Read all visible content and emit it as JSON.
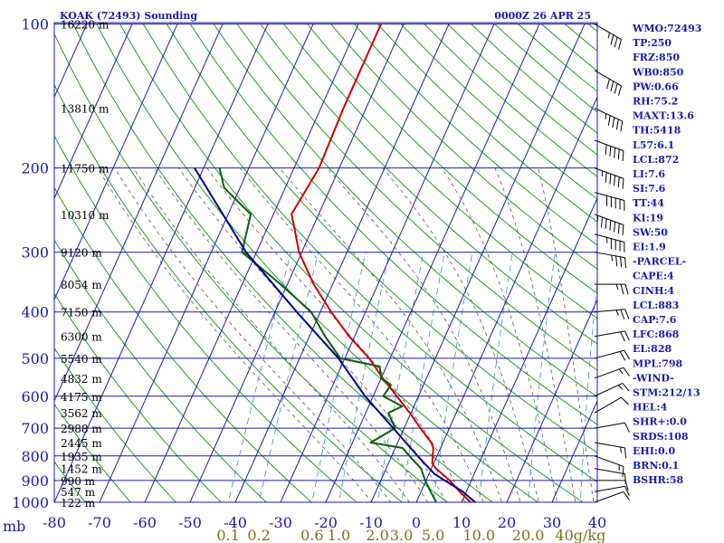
{
  "header": {
    "station": "KOAK (72493) Sounding",
    "time": "0000Z 26 APR 25"
  },
  "side_panel": [
    "WMO:72493",
    "TP:250",
    "FRZ:850",
    "WB0:850",
    "PW:0.66",
    "RH:75.2",
    "MAXT:13.6",
    "TH:5418",
    "L57:6.1",
    "LCL:872",
    "LI:7.6",
    "SI:7.6",
    "TT:44",
    "KI:19",
    "SW:50",
    "EI:1.9",
    "-PARCEL-",
    "CAPE:4",
    "CINH:4",
    "LCL:883",
    "CAP:7.6",
    "LFC:868",
    "EL:828",
    "MPL:798",
    "-WIND-",
    "STM:212/13",
    "HEL:4",
    "SHR+:0.0",
    "SRDS:108",
    "EHI:0.0",
    "BRN:0.1",
    "BSHR:58"
  ],
  "chart_data": {
    "type": "line",
    "title": "KOAK (72493) Sounding",
    "subtitle": "0000Z 26 APR 25",
    "xlabel": "",
    "ylabel": "mb",
    "x_scale": "skew-T temperature (°C)",
    "y_scale": "log pressure (mb)",
    "xlim": [
      -80,
      40
    ],
    "ylim": [
      1000,
      100
    ],
    "y_tick_unit": "mb",
    "x_ticks": [
      "-80",
      "-70",
      "-60",
      "-50",
      "-40",
      "-30",
      "-20",
      "-10",
      "0",
      "10",
      "20",
      "30",
      "40"
    ],
    "pressure_ticks": [
      "100",
      "200",
      "300",
      "400",
      "500",
      "600",
      "700",
      "800",
      "900",
      "1000"
    ],
    "height_labels": [
      {
        "p": 100,
        "label": "16220 m"
      },
      {
        "p": 150,
        "label": "13810 m"
      },
      {
        "p": 200,
        "label": "11750 m"
      },
      {
        "p": 250,
        "label": "10310 m"
      },
      {
        "p": 300,
        "label": "9120 m"
      },
      {
        "p": 350,
        "label": "8054 m"
      },
      {
        "p": 400,
        "label": "7150 m"
      },
      {
        "p": 450,
        "label": "6300 m"
      },
      {
        "p": 500,
        "label": "5540 m"
      },
      {
        "p": 550,
        "label": "4832 m"
      },
      {
        "p": 600,
        "label": "4175 m"
      },
      {
        "p": 650,
        "label": "3562 m"
      },
      {
        "p": 700,
        "label": "2988 m"
      },
      {
        "p": 750,
        "label": "2445 m"
      },
      {
        "p": 800,
        "label": "1935 m"
      },
      {
        "p": 850,
        "label": "1452 m"
      },
      {
        "p": 900,
        "label": "990 m"
      },
      {
        "p": 950,
        "label": "547 m"
      },
      {
        "p": 1000,
        "label": "122 m"
      }
    ],
    "mixing_ratio_labels": [
      "0.1",
      "0.2",
      "0.6",
      "1.0",
      "2.0",
      "3.0",
      "5.0",
      "10.0",
      "20.0",
      "40g/kg"
    ],
    "series": [
      {
        "name": "temperature",
        "color": "#cc0000",
        "points": [
          [
            1008,
            13.6
          ],
          [
            1000,
            12.0
          ],
          [
            950,
            8.5
          ],
          [
            900,
            5.2
          ],
          [
            850,
            1.0
          ],
          [
            830,
            -0.3
          ],
          [
            770,
            -1.6
          ],
          [
            750,
            -2.6
          ],
          [
            700,
            -6.4
          ],
          [
            650,
            -10.3
          ],
          [
            600,
            -14.8
          ],
          [
            550,
            -19.7
          ],
          [
            500,
            -24.6
          ],
          [
            450,
            -31.2
          ],
          [
            400,
            -37.6
          ],
          [
            350,
            -44.2
          ],
          [
            300,
            -50.6
          ],
          [
            260,
            -54.8
          ],
          [
            250,
            -56.0
          ],
          [
            200,
            -54.5
          ],
          [
            150,
            -55.0
          ],
          [
            100,
            -55.0
          ]
        ]
      },
      {
        "name": "dewpoint",
        "color": "#0a5c0a",
        "points": [
          [
            1008,
            4.8
          ],
          [
            1000,
            4.4
          ],
          [
            950,
            2.1
          ],
          [
            900,
            -0.2
          ],
          [
            850,
            -2.3
          ],
          [
            800,
            -6.1
          ],
          [
            770,
            -8.4
          ],
          [
            750,
            -16.0
          ],
          [
            700,
            -12.0
          ],
          [
            650,
            -15.0
          ],
          [
            630,
            -12.6
          ],
          [
            600,
            -17.8
          ],
          [
            570,
            -17.2
          ],
          [
            560,
            -18.4
          ],
          [
            550,
            -20.0
          ],
          [
            520,
            -21.5
          ],
          [
            500,
            -31.0
          ],
          [
            450,
            -36.5
          ],
          [
            400,
            -42.0
          ],
          [
            350,
            -51.5
          ],
          [
            300,
            -63.2
          ],
          [
            250,
            -65.0
          ],
          [
            220,
            -73.5
          ],
          [
            200,
            -76.5
          ]
        ]
      },
      {
        "name": "parcel",
        "color": "#00008b",
        "points": [
          [
            1008,
            13.6
          ],
          [
            950,
            9.2
          ],
          [
            900,
            4.1
          ],
          [
            872,
            1.2
          ],
          [
            800,
            -4.3
          ],
          [
            700,
            -12.4
          ],
          [
            600,
            -21.8
          ],
          [
            500,
            -31.4
          ],
          [
            400,
            -45.2
          ],
          [
            300,
            -62.3
          ],
          [
            200,
            -82.0
          ]
        ]
      }
    ],
    "wind_barbs": [
      {
        "p": 100,
        "dir": 300,
        "spd": 35
      },
      {
        "p": 125,
        "dir": 300,
        "spd": 40
      },
      {
        "p": 150,
        "dir": 295,
        "spd": 45
      },
      {
        "p": 175,
        "dir": 290,
        "spd": 50
      },
      {
        "p": 200,
        "dir": 290,
        "spd": 55
      },
      {
        "p": 225,
        "dir": 285,
        "spd": 50
      },
      {
        "p": 250,
        "dir": 290,
        "spd": 70
      },
      {
        "p": 275,
        "dir": 285,
        "spd": 45
      },
      {
        "p": 300,
        "dir": 280,
        "spd": 35
      },
      {
        "p": 350,
        "dir": 270,
        "spd": 25
      },
      {
        "p": 400,
        "dir": 265,
        "spd": 25
      },
      {
        "p": 450,
        "dir": 260,
        "spd": 20
      },
      {
        "p": 500,
        "dir": 255,
        "spd": 20
      },
      {
        "p": 550,
        "dir": 250,
        "spd": 15
      },
      {
        "p": 600,
        "dir": 245,
        "spd": 15
      },
      {
        "p": 650,
        "dir": 240,
        "spd": 10
      },
      {
        "p": 700,
        "dir": 260,
        "spd": 10
      },
      {
        "p": 750,
        "dir": 280,
        "spd": 15
      },
      {
        "p": 800,
        "dir": 290,
        "spd": 15
      },
      {
        "p": 850,
        "dir": 280,
        "spd": 10
      },
      {
        "p": 900,
        "dir": 270,
        "spd": 10
      },
      {
        "p": 950,
        "dir": 260,
        "spd": 10
      },
      {
        "p": 1000,
        "dir": 250,
        "spd": 10
      }
    ],
    "colors": {
      "grid": "#1a1aa8",
      "dry_adiabat": "#009900",
      "moist_adiabat": "#555555",
      "mixing_ratio": "#3a8fd0",
      "wind": "#000000",
      "mixing_label": "#7a6f1f"
    }
  }
}
